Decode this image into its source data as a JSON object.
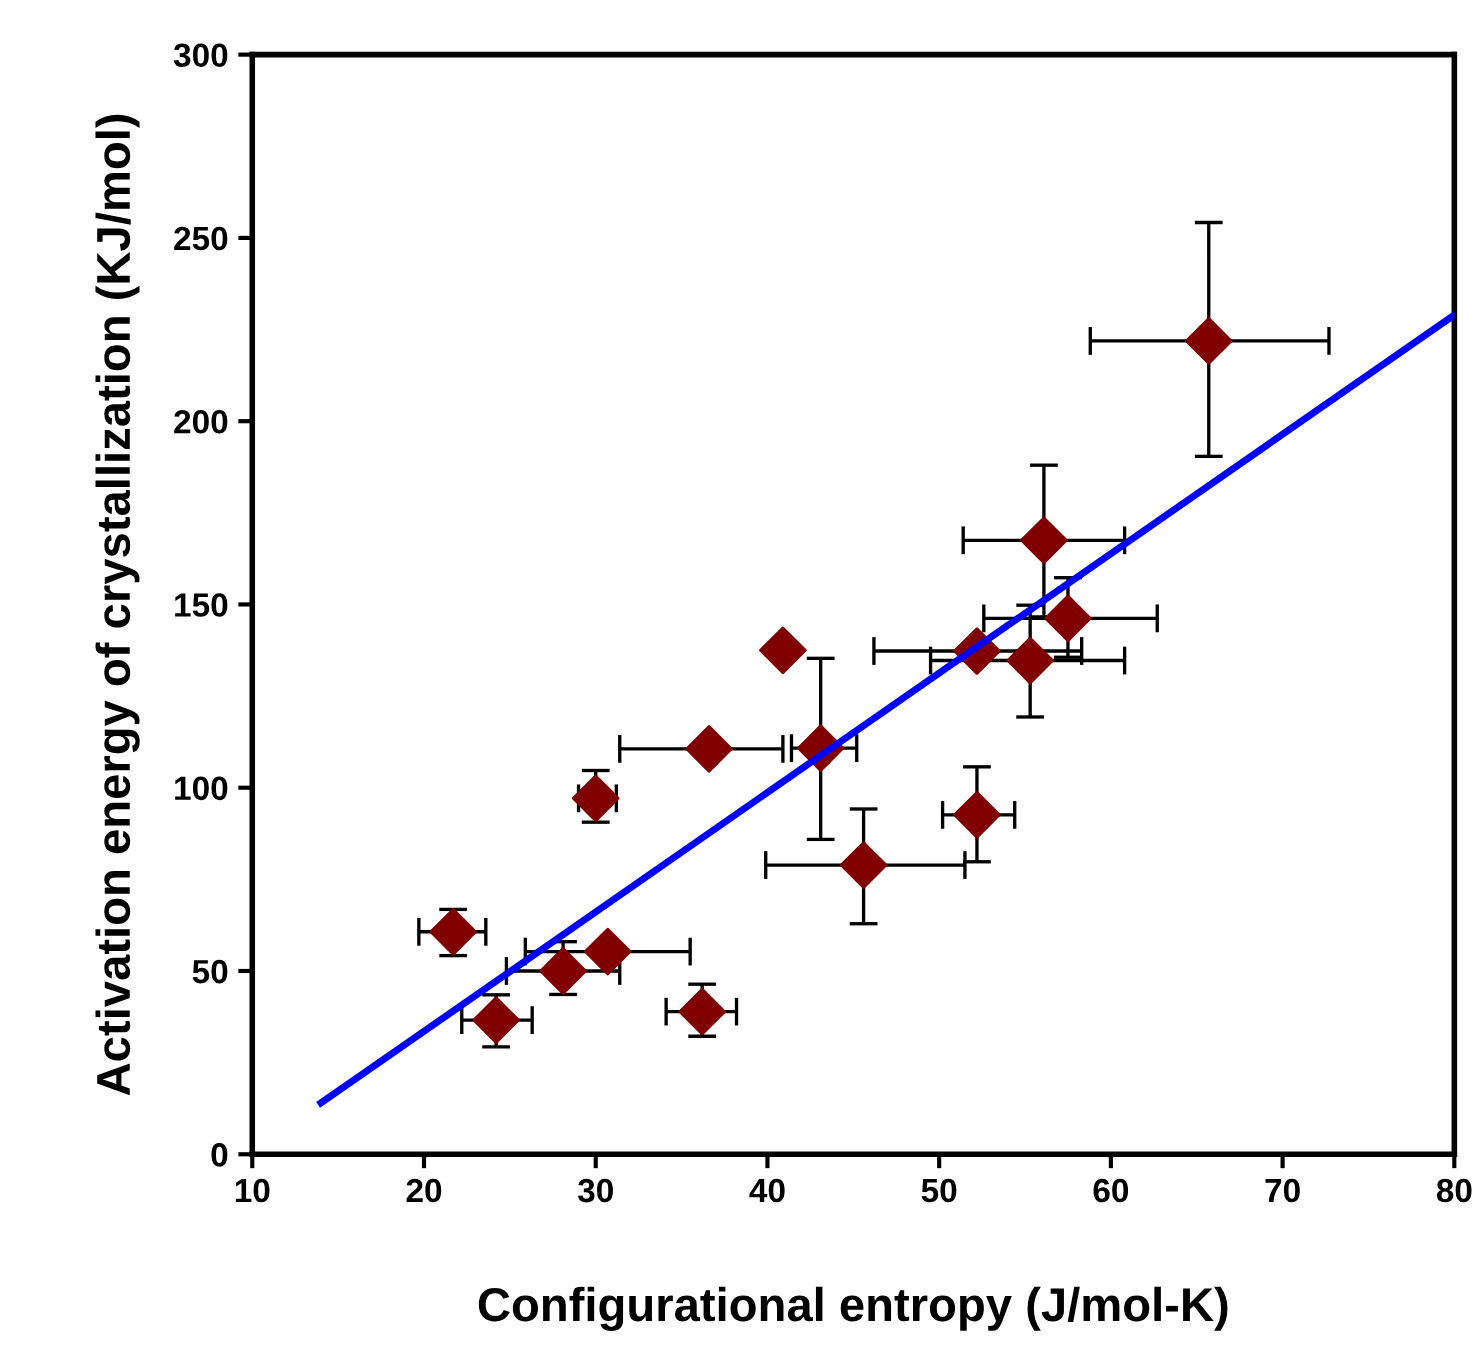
{
  "chart_data": {
    "type": "scatter",
    "xlabel": "Configurational entropy (J/mol-K)",
    "ylabel": "Activation energy of crystallization (KJ/mol)",
    "xlim": [
      10,
      80
    ],
    "ylim": [
      0,
      300
    ],
    "xticks": [
      10,
      20,
      30,
      40,
      50,
      60,
      70,
      80
    ],
    "yticks": [
      0,
      50,
      100,
      150,
      200,
      250,
      300
    ],
    "grid": false,
    "legend": false,
    "series": [
      {
        "color": "#800000",
        "marker": "diamond",
        "x": [
          21.7,
          24.2,
          28.1,
          30.7,
          36.2,
          30.0,
          36.6,
          40.9,
          43.1,
          45.6,
          52.2,
          65.7,
          56.1,
          57.5,
          52.2,
          55.3
        ],
        "values": [
          60.7,
          36.6,
          50,
          55.3,
          38.9,
          97.1,
          110.6,
          137.5,
          110.8,
          78.9,
          92.6,
          221.9,
          167.5,
          146.2,
          137.3,
          134.7
        ],
        "errors": [
          [
            54.2,
            66.8
          ],
          [
            29.3,
            43.5
          ],
          [
            43.6,
            58
          ],
          null,
          [
            32.2,
            46.4
          ],
          [
            90.6,
            104.7
          ],
          null,
          null,
          [
            85.9,
            135.3
          ],
          [
            62.9,
            94.2
          ],
          [
            79.8,
            105.7
          ],
          [
            190.4,
            254.2
          ],
          [
            146.6,
            188
          ],
          [
            135.6,
            157.3
          ],
          null,
          [
            119.3,
            149.8
          ]
        ],
        "xerrors": [
          [
            19.7,
            23.6
          ],
          [
            22.2,
            26.3
          ],
          [
            24.8,
            31.4
          ],
          [
            25.9,
            35.5
          ],
          [
            34.1,
            38.2
          ],
          [
            29.0,
            31.2
          ],
          [
            31.4,
            40.9
          ],
          null,
          [
            41.4,
            45.2
          ],
          [
            39.9,
            51.5
          ],
          [
            50.2,
            54.4
          ],
          [
            58.8,
            72.7
          ],
          [
            51.4,
            60.8
          ],
          [
            52.6,
            62.7
          ],
          [
            46.2,
            58.3
          ],
          [
            49.5,
            60.8
          ]
        ]
      },
      {
        "type": "line",
        "color": "#0000ff",
        "marker": "none",
        "line_style": "solid",
        "x": [
          14,
          80
        ],
        "values": [
          14,
          229
        ]
      }
    ]
  }
}
